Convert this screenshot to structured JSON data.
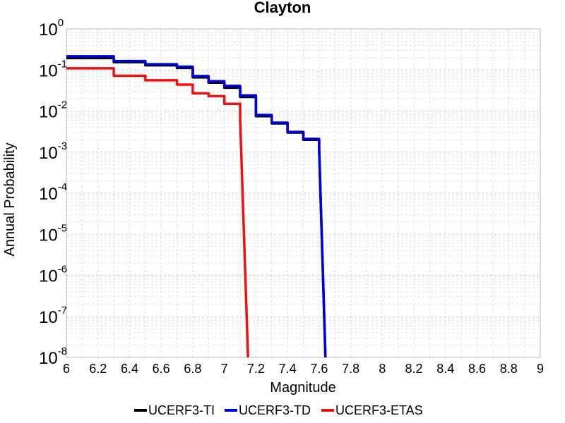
{
  "chart_data": {
    "type": "line",
    "title": "Clayton",
    "xlabel": "Magnitude",
    "ylabel": "Annual Probability",
    "xlim": [
      6,
      9
    ],
    "ylim": [
      1e-08,
      1
    ],
    "yscale": "log",
    "grid": true,
    "legend_position": "bottom",
    "x_ticks": [
      "6",
      "6.2",
      "6.4",
      "6.6",
      "6.8",
      "7",
      "7.2",
      "7.4",
      "7.6",
      "7.8",
      "8",
      "8.2",
      "8.4",
      "8.6",
      "8.8",
      "9"
    ],
    "y_ticks": [
      {
        "base": "10",
        "exp": "0"
      },
      {
        "base": "10",
        "exp": "-1"
      },
      {
        "base": "10",
        "exp": "-2"
      },
      {
        "base": "10",
        "exp": "-3"
      },
      {
        "base": "10",
        "exp": "-4"
      },
      {
        "base": "10",
        "exp": "-5"
      },
      {
        "base": "10",
        "exp": "-6"
      },
      {
        "base": "10",
        "exp": "-7"
      },
      {
        "base": "10",
        "exp": "-8"
      }
    ],
    "series": [
      {
        "name": "UCERF3-TI",
        "color": "#000000",
        "points": [
          [
            6.0,
            0.195
          ],
          [
            6.1,
            0.195
          ],
          [
            6.2,
            0.195
          ],
          [
            6.3,
            0.155
          ],
          [
            6.4,
            0.155
          ],
          [
            6.5,
            0.13
          ],
          [
            6.6,
            0.13
          ],
          [
            6.7,
            0.112
          ],
          [
            6.8,
            0.066
          ],
          [
            6.9,
            0.049
          ],
          [
            7.0,
            0.037
          ],
          [
            7.1,
            0.022
          ],
          [
            7.2,
            0.0075
          ],
          [
            7.3,
            0.005
          ],
          [
            7.4,
            0.003
          ],
          [
            7.5,
            0.002
          ],
          [
            7.6,
            0.0012
          ],
          [
            7.64,
            1e-08
          ]
        ]
      },
      {
        "name": "UCERF3-TD",
        "color": "#0000dd",
        "points": [
          [
            6.0,
            0.215
          ],
          [
            6.1,
            0.215
          ],
          [
            6.2,
            0.215
          ],
          [
            6.3,
            0.165
          ],
          [
            6.4,
            0.165
          ],
          [
            6.5,
            0.138
          ],
          [
            6.6,
            0.138
          ],
          [
            6.7,
            0.12
          ],
          [
            6.8,
            0.071
          ],
          [
            6.9,
            0.053
          ],
          [
            7.0,
            0.041
          ],
          [
            7.1,
            0.024
          ],
          [
            7.2,
            0.008
          ],
          [
            7.3,
            0.0052
          ],
          [
            7.4,
            0.0031
          ],
          [
            7.5,
            0.0021
          ],
          [
            7.6,
            0.00125
          ],
          [
            7.64,
            1e-08
          ]
        ]
      },
      {
        "name": "UCERF3-ETAS",
        "color": "#ee1111",
        "points": [
          [
            6.0,
            0.11
          ],
          [
            6.1,
            0.11
          ],
          [
            6.2,
            0.11
          ],
          [
            6.3,
            0.072
          ],
          [
            6.4,
            0.072
          ],
          [
            6.5,
            0.056
          ],
          [
            6.6,
            0.056
          ],
          [
            6.7,
            0.044
          ],
          [
            6.8,
            0.027
          ],
          [
            6.9,
            0.023
          ],
          [
            7.0,
            0.015
          ],
          [
            7.1,
            0.0063
          ],
          [
            7.15,
            1e-08
          ]
        ]
      }
    ]
  }
}
